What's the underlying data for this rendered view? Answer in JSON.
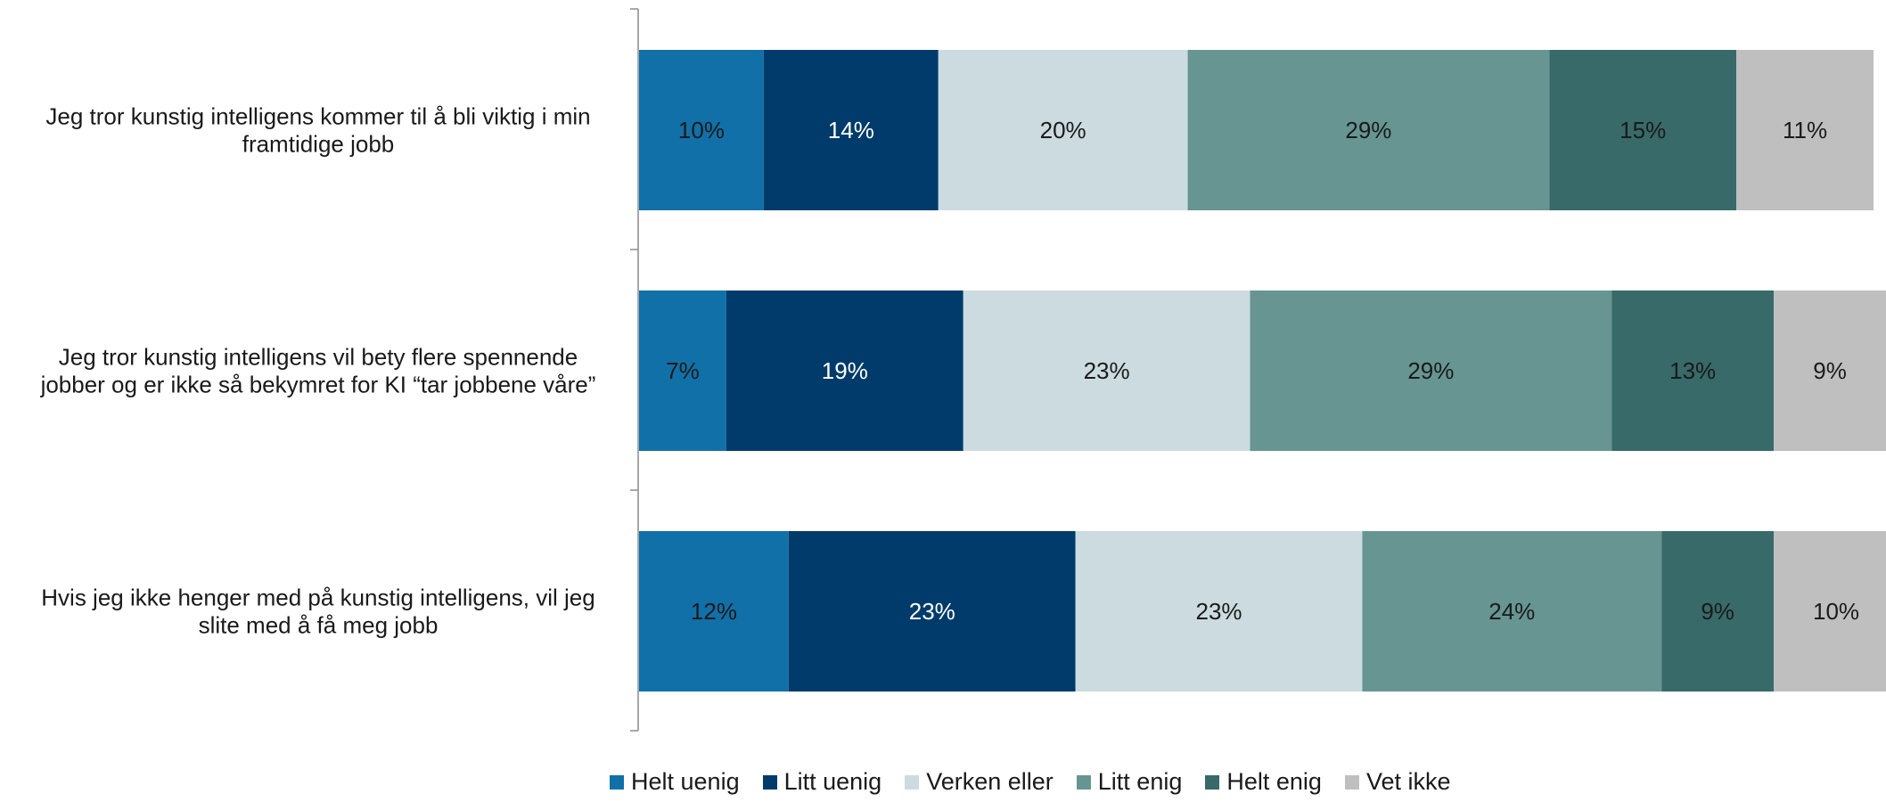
{
  "chart_data": {
    "type": "bar",
    "orientation": "horizontal",
    "stacked": "100%",
    "categories": [
      "Jeg tror kunstig intelligens kommer til å bli viktig i min framtidige jobb",
      "Jeg tror kunstig intelligens vil bety flere spennende jobber og er ikke så bekymret for KI “tar jobbene våre”",
      "Hvis jeg ikke henger med på kunstig intelligens, vil jeg slite med å få meg jobb"
    ],
    "category_lines": [
      [
        "Jeg tror kunstig intelligens kommer til å bli viktig i min",
        "framtidige jobb"
      ],
      [
        "Jeg tror kunstig intelligens vil bety flere spennende",
        "jobber og er ikke så bekymret for KI “tar jobbene våre”"
      ],
      [
        "Hvis jeg ikke henger med på kunstig intelligens, vil jeg",
        "slite med å få meg jobb"
      ]
    ],
    "series": [
      {
        "name": "Helt uenig",
        "color": "#1170a8",
        "label_color": "#1a1a1a",
        "values": [
          10,
          7,
          12
        ]
      },
      {
        "name": "Litt uenig",
        "color": "#003b6b",
        "label_color": "#ffffff",
        "values": [
          14,
          19,
          23
        ]
      },
      {
        "name": "Verken eller",
        "color": "#ccdbe0",
        "label_color": "#1a1a1a",
        "values": [
          20,
          23,
          23
        ]
      },
      {
        "name": "Litt enig",
        "color": "#679592",
        "label_color": "#1a1a1a",
        "values": [
          29,
          29,
          24
        ]
      },
      {
        "name": "Helt enig",
        "color": "#376a68",
        "label_color": "#1a1a1a",
        "values": [
          15,
          13,
          9
        ]
      },
      {
        "name": "Vet ikke",
        "color": "#bfbfbf",
        "label_color": "#1a1a1a",
        "values": [
          11,
          9,
          10
        ]
      }
    ],
    "value_suffix": "%",
    "xlim": [
      0,
      100
    ],
    "legend_position": "bottom",
    "grid": false
  }
}
